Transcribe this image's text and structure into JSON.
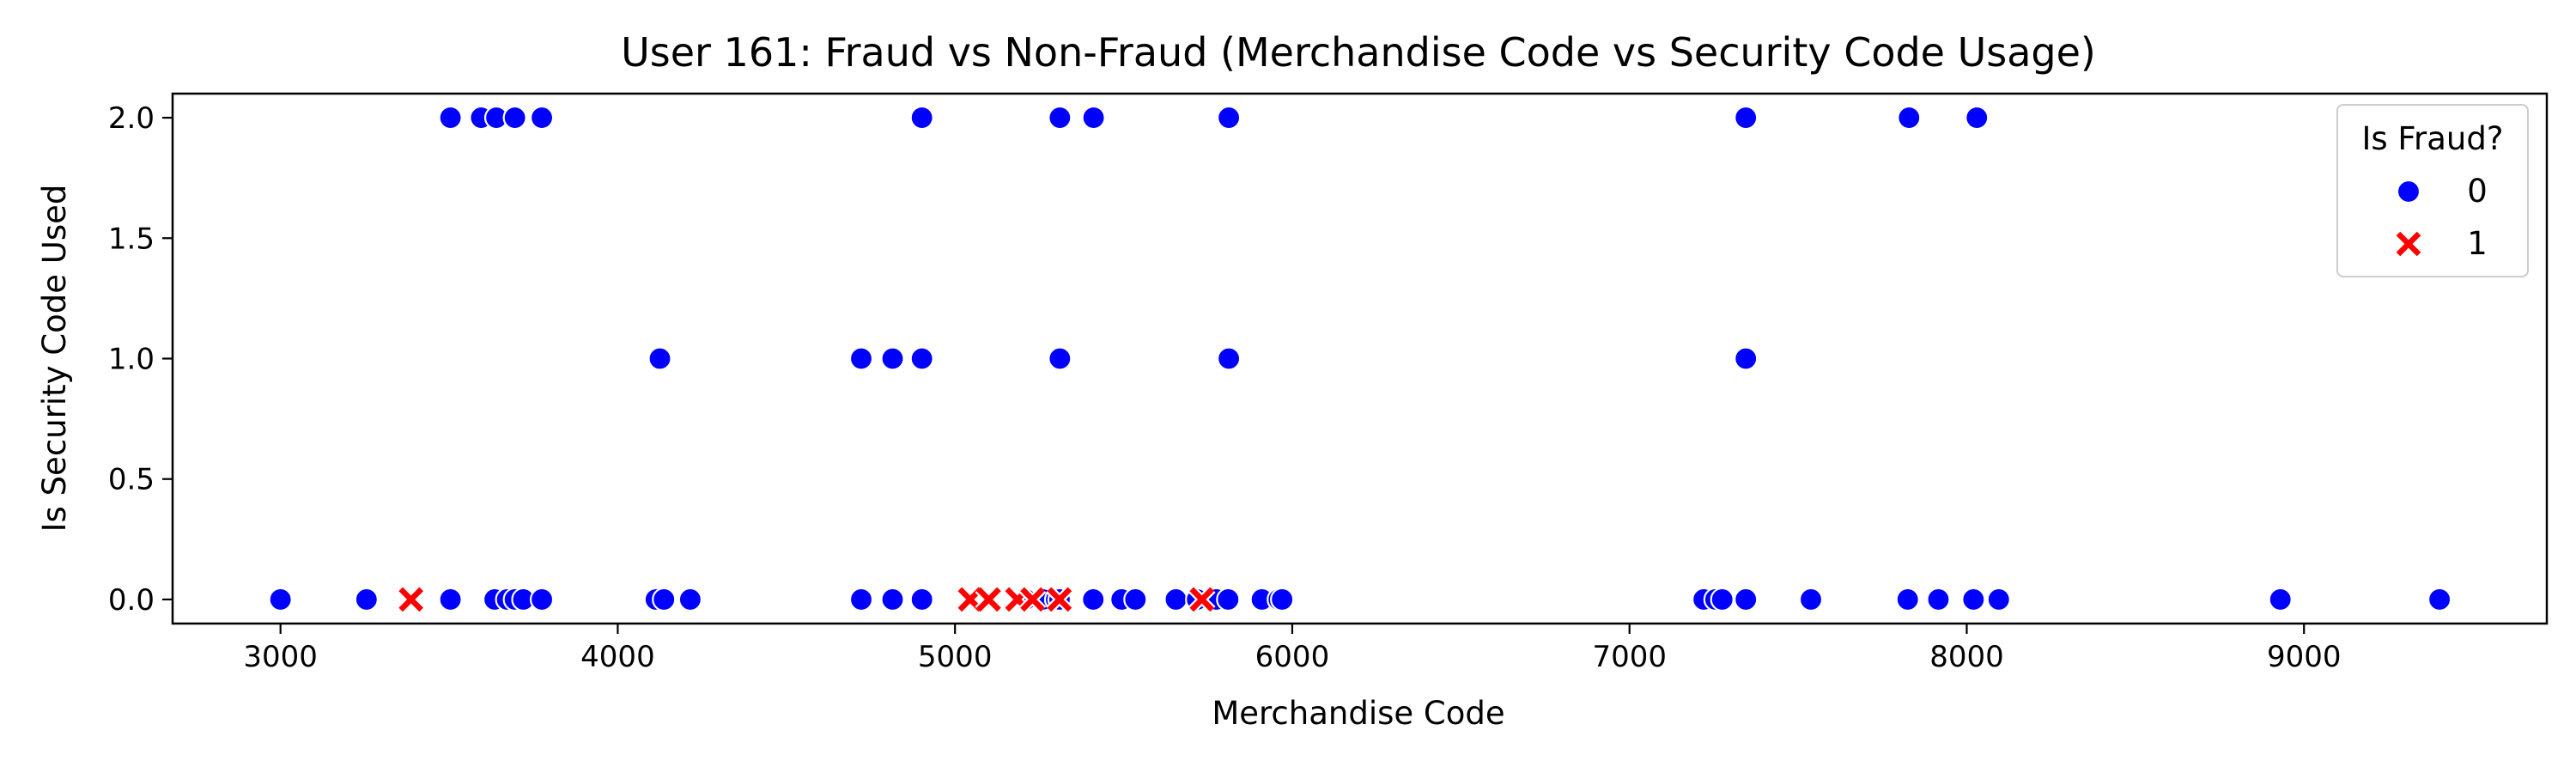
{
  "chart_data": {
    "type": "scatter",
    "title": "User 161: Fraud vs Non-Fraud (Merchandise Code vs Security Code Usage)",
    "xlabel": "Merchandise Code",
    "ylabel": "Is Security Code Used",
    "xlim": [
      2680,
      9720
    ],
    "ylim": [
      -0.1,
      2.1
    ],
    "xticks": [
      3000,
      4000,
      5000,
      6000,
      7000,
      8000,
      9000
    ],
    "xtick_labels": [
      "3000",
      "4000",
      "5000",
      "6000",
      "7000",
      "8000",
      "9000"
    ],
    "yticks": [
      0.0,
      0.5,
      1.0,
      1.5,
      2.0
    ],
    "ytick_labels": [
      "0.0",
      "0.5",
      "1.0",
      "1.5",
      "2.0"
    ],
    "grid": false,
    "legend": {
      "title": "Is Fraud?",
      "placement": "top-right",
      "entries": [
        {
          "label": "0",
          "marker": "circle",
          "color": "#0000ff"
        },
        {
          "label": "1",
          "marker": "x",
          "color": "#ff0000"
        }
      ]
    },
    "series": [
      {
        "name": "0",
        "color": "#0000ff",
        "marker": "circle",
        "points": [
          [
            3000,
            0
          ],
          [
            3255,
            0
          ],
          [
            3504,
            0
          ],
          [
            3635,
            0
          ],
          [
            3672,
            0
          ],
          [
            3695,
            0
          ],
          [
            3720,
            0
          ],
          [
            3775,
            0
          ],
          [
            4113,
            0
          ],
          [
            4137,
            0
          ],
          [
            4215,
            0
          ],
          [
            4722,
            0
          ],
          [
            4815,
            0
          ],
          [
            4902,
            0
          ],
          [
            5210,
            0
          ],
          [
            5260,
            0
          ],
          [
            5300,
            0
          ],
          [
            5310,
            0
          ],
          [
            5410,
            0
          ],
          [
            5494,
            0
          ],
          [
            5535,
            0
          ],
          [
            5655,
            0
          ],
          [
            5718,
            0
          ],
          [
            5775,
            0
          ],
          [
            5810,
            0
          ],
          [
            5910,
            0
          ],
          [
            5960,
            0
          ],
          [
            5970,
            0
          ],
          [
            7220,
            0
          ],
          [
            7255,
            0
          ],
          [
            7275,
            0
          ],
          [
            7345,
            0
          ],
          [
            7538,
            0
          ],
          [
            7825,
            0
          ],
          [
            7916,
            0
          ],
          [
            8020,
            0
          ],
          [
            8095,
            0
          ],
          [
            8930,
            0
          ],
          [
            9402,
            0
          ],
          [
            4125,
            1
          ],
          [
            4722,
            1
          ],
          [
            4815,
            1
          ],
          [
            4902,
            1
          ],
          [
            5311,
            1
          ],
          [
            5812,
            1
          ],
          [
            7345,
            1
          ],
          [
            3504,
            2
          ],
          [
            3595,
            2
          ],
          [
            3640,
            2
          ],
          [
            3695,
            2
          ],
          [
            3775,
            2
          ],
          [
            4902,
            2
          ],
          [
            5311,
            2
          ],
          [
            5411,
            2
          ],
          [
            5812,
            2
          ],
          [
            7345,
            2
          ],
          [
            7829,
            2
          ],
          [
            8030,
            2
          ]
        ]
      },
      {
        "name": "1",
        "color": "#ff0000",
        "marker": "x",
        "points": [
          [
            3387,
            0
          ],
          [
            5045,
            0
          ],
          [
            5100,
            0
          ],
          [
            5185,
            0
          ],
          [
            5230,
            0
          ],
          [
            5310,
            0
          ],
          [
            5732,
            0
          ]
        ]
      }
    ]
  }
}
